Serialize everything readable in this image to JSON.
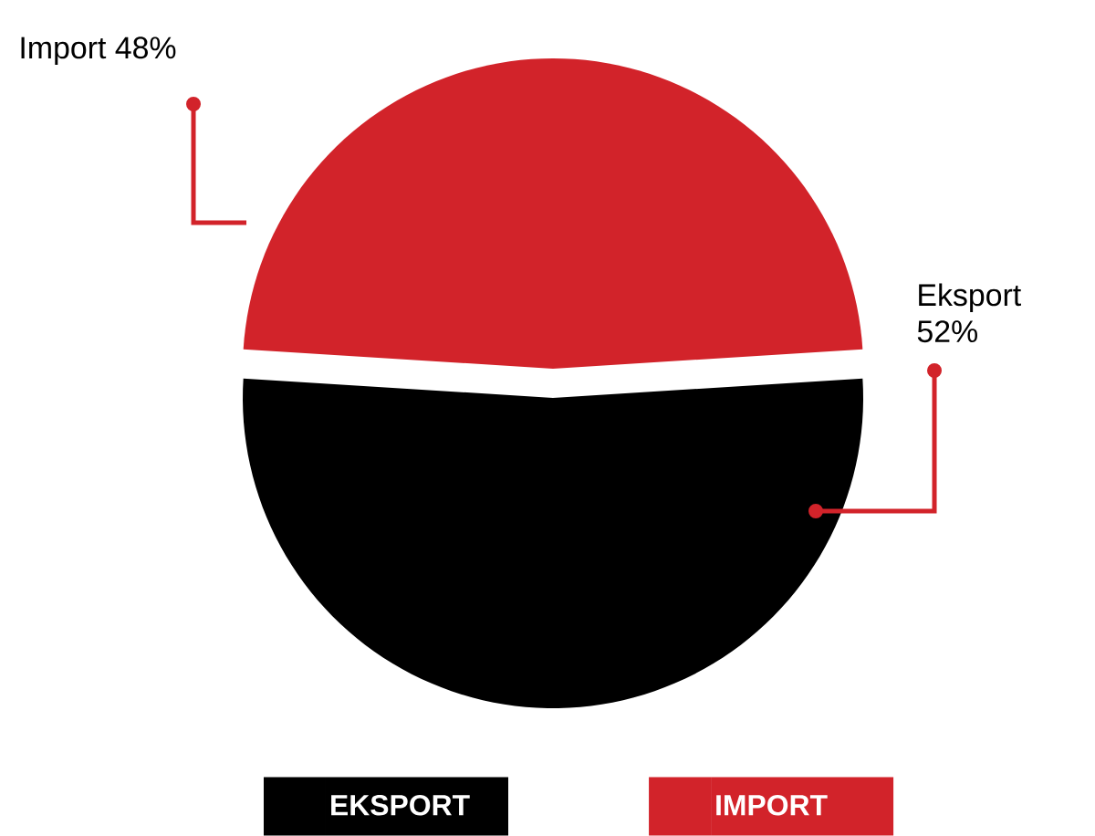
{
  "chart_data": {
    "type": "pie",
    "categories": [
      "EKSPORT",
      "IMPORT"
    ],
    "values": [
      52,
      48
    ],
    "value_labels": [
      "Eksport 52%",
      "Import 48%"
    ],
    "colors": [
      "#000000",
      "#d2232a"
    ],
    "legend": "bottom"
  }
}
